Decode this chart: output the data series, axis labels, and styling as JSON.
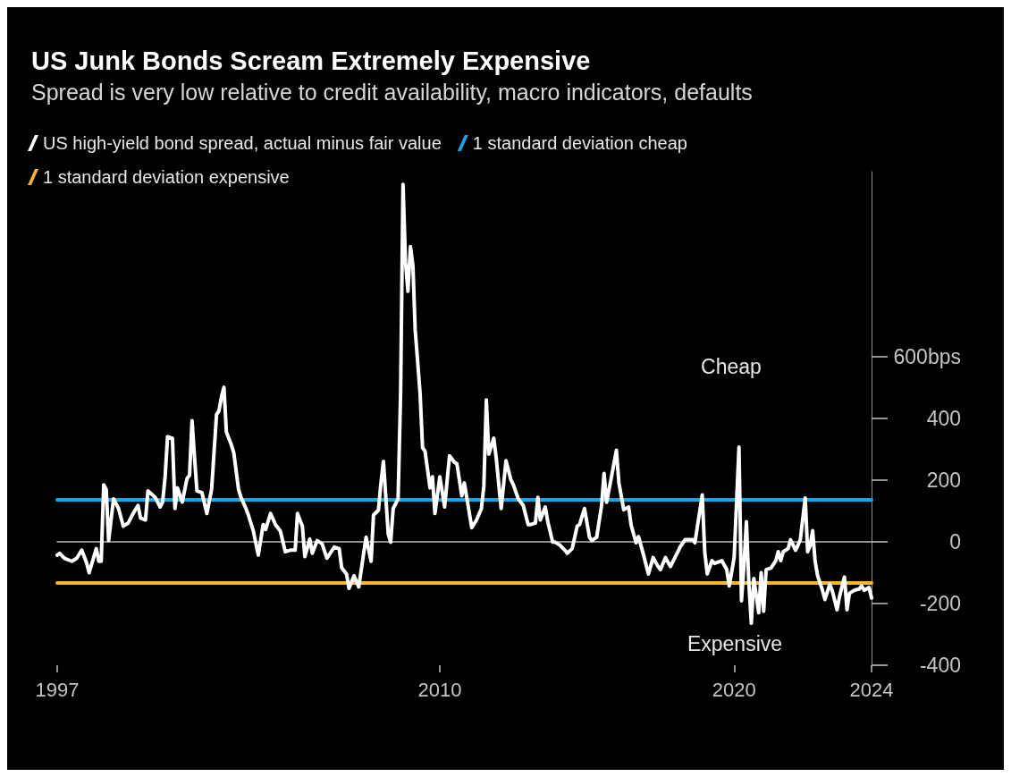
{
  "chart_data": {
    "type": "line",
    "title": "US Junk Bonds Scream Extremely Expensive",
    "subtitle": "Spread is very low relative to credit availability, macro indicators, defaults",
    "x": [
      "1997-01",
      "1997-02",
      "1997-04",
      "1997-07",
      "1997-09",
      "1997-11",
      "1998-01",
      "1998-02",
      "1998-05",
      "1998-06",
      "1998-07",
      "1998-08",
      "1998-09",
      "1998-10",
      "1998-12",
      "1999-02",
      "1999-04",
      "1999-06",
      "1999-08",
      "1999-10",
      "1999-11",
      "2000-01",
      "2000-02",
      "2000-05",
      "2000-07",
      "2000-08",
      "2000-09",
      "2000-10",
      "2000-12",
      "2001-01",
      "2001-02",
      "2001-04",
      "2001-06",
      "2001-07",
      "2001-08",
      "2001-09",
      "2001-10",
      "2001-12",
      "2002-02",
      "2002-04",
      "2002-06",
      "2002-07",
      "2002-08",
      "2002-09",
      "2002-10",
      "2002-12",
      "2003-01",
      "2003-03",
      "2003-04",
      "2003-06",
      "2003-07",
      "2003-09",
      "2003-11",
      "2004-01",
      "2004-02",
      "2004-04",
      "2004-06",
      "2004-08",
      "2004-10",
      "2004-12",
      "2005-02",
      "2005-03",
      "2005-05",
      "2005-06",
      "2005-08",
      "2005-09",
      "2005-11",
      "2006-01",
      "2006-03",
      "2006-06",
      "2006-08",
      "2006-09",
      "2006-11",
      "2006-12",
      "2007-02",
      "2007-04",
      "2007-06",
      "2007-07",
      "2007-09",
      "2007-10",
      "2007-12",
      "2008-01",
      "2008-02",
      "2008-04",
      "2008-05",
      "2008-06",
      "2008-08",
      "2008-09",
      "2008-10",
      "2008-11",
      "2008-12",
      "2009-01",
      "2009-02",
      "2009-03",
      "2009-05",
      "2009-06",
      "2009-07",
      "2009-09",
      "2009-10",
      "2009-11",
      "2010-01",
      "2010-03",
      "2010-05",
      "2010-07",
      "2010-08",
      "2010-10",
      "2010-11",
      "2011-02",
      "2011-04",
      "2011-06",
      "2011-07",
      "2011-08",
      "2011-09",
      "2011-11",
      "2011-12",
      "2012-02",
      "2012-04",
      "2012-06",
      "2012-07",
      "2012-09",
      "2012-11",
      "2013-01",
      "2013-02",
      "2013-04",
      "2013-05",
      "2013-06",
      "2013-08",
      "2013-09",
      "2013-11",
      "2013-12",
      "2014-02",
      "2014-04",
      "2014-05",
      "2014-07",
      "2014-09",
      "2014-10",
      "2014-12",
      "2015-02",
      "2015-03",
      "2015-05",
      "2015-07",
      "2015-08",
      "2015-09",
      "2015-11",
      "2016-01",
      "2016-02",
      "2016-04",
      "2016-06",
      "2016-07",
      "2016-09",
      "2016-10",
      "2016-12",
      "2017-02",
      "2017-04",
      "2017-06",
      "2017-07",
      "2017-09",
      "2017-11",
      "2018-02",
      "2018-03",
      "2018-05",
      "2018-08",
      "2018-09",
      "2018-12",
      "2019-01",
      "2019-02",
      "2019-04",
      "2019-05",
      "2019-08",
      "2019-10",
      "2019-11",
      "2020-01",
      "2020-03",
      "2020-04",
      "2020-05",
      "2020-06",
      "2020-07",
      "2020-08",
      "2020-09",
      "2020-11",
      "2020-12",
      "2021-01",
      "2021-02",
      "2021-04",
      "2021-06",
      "2021-07",
      "2021-08",
      "2021-09",
      "2021-11",
      "2021-12",
      "2022-02",
      "2022-03",
      "2022-04",
      "2022-06",
      "2022-07",
      "2022-08",
      "2022-09",
      "2022-10",
      "2022-11",
      "2023-01",
      "2023-02",
      "2023-04",
      "2023-05",
      "2023-07",
      "2023-08",
      "2023-10",
      "2023-11",
      "2023-12",
      "2024-02",
      "2024-04",
      "2024-05",
      "2024-06",
      "2024-08",
      "2024-09"
    ],
    "series": [
      {
        "name": "US high-yield bond spread, actual minus fair value",
        "color": "#ffffff",
        "values": [
          -43,
          -37,
          -53,
          -63,
          -53,
          -27,
          -68,
          -100,
          -22,
          -63,
          -63,
          185,
          170,
          4,
          139,
          108,
          51,
          61,
          92,
          118,
          77,
          71,
          165,
          144,
          113,
          129,
          211,
          341,
          336,
          108,
          175,
          129,
          206,
          216,
          393,
          274,
          165,
          160,
          92,
          170,
          413,
          424,
          470,
          501,
          356,
          315,
          289,
          170,
          144,
          108,
          87,
          35,
          -43,
          56,
          40,
          92,
          56,
          35,
          -32,
          -27,
          -27,
          92,
          51,
          -48,
          9,
          -37,
          4,
          -6,
          -53,
          -17,
          -22,
          -84,
          -105,
          -151,
          -110,
          -146,
          -37,
          15,
          -63,
          87,
          103,
          191,
          261,
          25,
          -1,
          108,
          139,
          481,
          1159,
          906,
          812,
          957,
          895,
          688,
          481,
          305,
          294,
          175,
          211,
          92,
          211,
          113,
          279,
          258,
          253,
          149,
          191,
          46,
          71,
          108,
          180,
          460,
          284,
          336,
          273,
          108,
          263,
          201,
          185,
          139,
          118,
          56,
          56,
          61,
          144,
          71,
          113,
          66,
          -1,
          -1,
          -11,
          -27,
          -37,
          -22,
          51,
          56,
          108,
          15,
          4,
          15,
          118,
          222,
          128,
          211,
          297,
          191,
          104,
          113,
          55,
          -3,
          17,
          -41,
          -104,
          -51,
          -80,
          -90,
          -51,
          -80,
          -32,
          -17,
          7,
          7,
          -3,
          152,
          -32,
          -104,
          -61,
          -70,
          -61,
          -90,
          -143,
          -51,
          307,
          -191,
          -80,
          65,
          -133,
          -264,
          -119,
          -230,
          -100,
          -225,
          -90,
          -85,
          -61,
          -32,
          -61,
          -32,
          -22,
          7,
          -27,
          -12,
          7,
          142,
          -32,
          -12,
          36,
          -61,
          -109,
          -157,
          -187,
          -138,
          -157,
          -220,
          -177,
          -114,
          -220,
          -167,
          -157,
          -153,
          -143,
          -157,
          -148,
          -182
        ]
      },
      {
        "name": "1 standard deviation cheap",
        "color": "#1fa3e4",
        "x": [
          "1997-01",
          "2024-09"
        ],
        "values": [
          136,
          136
        ]
      },
      {
        "name": "1 standard deviation expensive",
        "color": "#f4b630",
        "x": [
          "1997-01",
          "2024-09"
        ],
        "values": [
          -133,
          -133
        ]
      }
    ],
    "ref_lines": [
      {
        "axis": "y",
        "value": 0,
        "color": "#bdbdbd"
      }
    ],
    "annotations": [
      "Cheap",
      "Expensive"
    ],
    "xlim": [
      "1997",
      "2024-09"
    ],
    "xticks": [
      "1997",
      "2010",
      "2020",
      {
        "value": "2024-09",
        "label": "2024"
      }
    ],
    "ylim": [
      -400,
      1200
    ],
    "yticks": [
      {
        "value": 600,
        "label": "600bps"
      },
      400,
      200,
      0,
      -200,
      -400
    ],
    "legend": "top left",
    "line_style": "solid"
  }
}
